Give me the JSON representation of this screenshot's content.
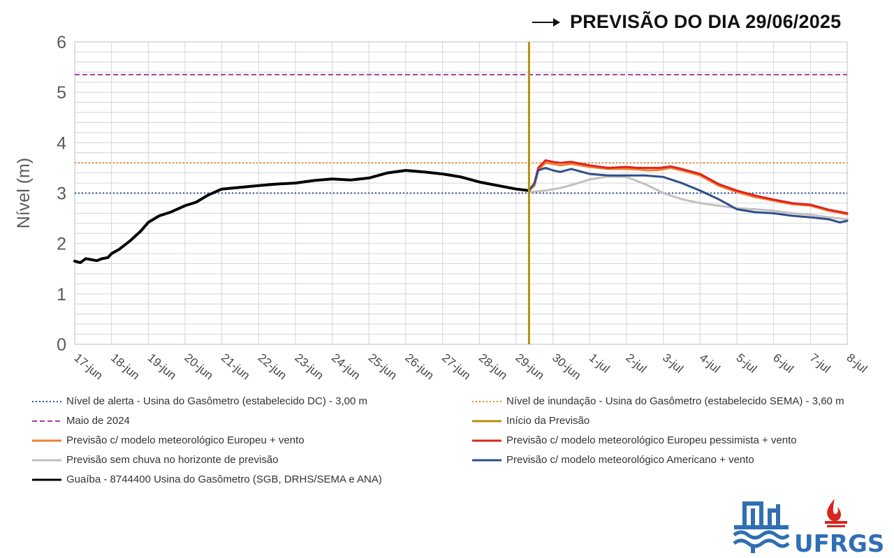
{
  "chart_data": {
    "type": "line",
    "title": "PREVISÃO DO DIA 29/06/2025",
    "ylabel": "Nível (m)",
    "xlabel": "",
    "ylim": [
      0,
      6
    ],
    "yticks": [
      "0",
      "1",
      "2",
      "3",
      "4",
      "5",
      "6"
    ],
    "xlim": [
      0,
      21
    ],
    "xticks": [
      "17-jun",
      "18-jun",
      "19-jun",
      "20-jun",
      "21-jun",
      "22-jun",
      "23-jun",
      "24-jun",
      "25-jun",
      "26-jun",
      "27-jun",
      "28-jun",
      "29-jun",
      "30-jun",
      "1-jul",
      "2-jul",
      "3-jul",
      "4-jul",
      "5-jul",
      "6-jul",
      "7-jul",
      "8-jul"
    ],
    "grid": true,
    "legend_position": "bottom",
    "reference_lines": [
      {
        "name": "Nível de alerta - Usina do Gasômetro (estabelecido DC) - 3,00 m",
        "value": 3.0,
        "color": "#2f4f9f",
        "style": "dotted"
      },
      {
        "name": "Nível de inundação - Usina do Gasômetro (estabelecido SEMA) - 3,60 m",
        "value": 3.6,
        "color": "#e08a2e",
        "style": "dotted"
      },
      {
        "name": "Maio de 2024",
        "value": 5.35,
        "color": "#a03ca0",
        "style": "dashed"
      }
    ],
    "vertical_line": {
      "name": "Início da Previsão",
      "x": 12.35,
      "color": "#b8900a"
    },
    "series": [
      {
        "name": "Previsão c/ modelo meteorológico Europeu + vento",
        "color": "#ee8233",
        "width": 3,
        "x": [
          12.35,
          12.5,
          12.6,
          12.8,
          13.0,
          13.2,
          13.5,
          14.0,
          14.5,
          15.0,
          15.3,
          15.6,
          15.9,
          16.2,
          16.5,
          17.0,
          17.5,
          18.0,
          18.5,
          19.0,
          19.5,
          20.0,
          20.5,
          21.0
        ],
        "y": [
          3.05,
          3.15,
          3.45,
          3.6,
          3.58,
          3.55,
          3.58,
          3.52,
          3.48,
          3.48,
          3.47,
          3.45,
          3.46,
          3.5,
          3.45,
          3.35,
          3.15,
          3.02,
          2.92,
          2.85,
          2.78,
          2.75,
          2.65,
          2.58
        ]
      },
      {
        "name": "Previsão c/ modelo meteorológico Europeu pessimista + vento",
        "color": "#e0231c",
        "width": 3,
        "x": [
          12.35,
          12.5,
          12.6,
          12.8,
          13.0,
          13.2,
          13.5,
          14.0,
          14.5,
          15.0,
          15.3,
          15.6,
          15.9,
          16.2,
          16.5,
          17.0,
          17.5,
          18.0,
          18.5,
          19.0,
          19.5,
          20.0,
          20.5,
          21.0
        ],
        "y": [
          3.05,
          3.2,
          3.5,
          3.65,
          3.62,
          3.6,
          3.62,
          3.55,
          3.5,
          3.52,
          3.5,
          3.5,
          3.5,
          3.53,
          3.48,
          3.38,
          3.18,
          3.05,
          2.95,
          2.87,
          2.8,
          2.77,
          2.67,
          2.6
        ]
      },
      {
        "name": "Previsão sem chuva no horizonte de previsão",
        "color": "#c0c0c0",
        "width": 3,
        "x": [
          12.35,
          12.8,
          13.2,
          13.6,
          14.0,
          14.5,
          15.0,
          15.5,
          16.0,
          16.5,
          17.0,
          17.5,
          18.0,
          18.5,
          19.0,
          19.5,
          20.0,
          20.5,
          21.0
        ],
        "y": [
          3.02,
          3.05,
          3.1,
          3.18,
          3.27,
          3.33,
          3.32,
          3.18,
          3.0,
          2.88,
          2.8,
          2.75,
          2.7,
          2.68,
          2.65,
          2.6,
          2.57,
          2.52,
          2.48
        ]
      },
      {
        "name": "Previsão c/ modelo meteorológico Americano + vento",
        "color": "#2e4f8a",
        "width": 3,
        "x": [
          12.35,
          12.5,
          12.6,
          12.8,
          13.0,
          13.2,
          13.5,
          14.0,
          14.5,
          15.0,
          15.5,
          16.0,
          16.5,
          17.0,
          17.5,
          18.0,
          18.5,
          19.0,
          19.5,
          20.0,
          20.5,
          20.8,
          21.0
        ],
        "y": [
          3.05,
          3.2,
          3.45,
          3.5,
          3.45,
          3.42,
          3.48,
          3.38,
          3.35,
          3.35,
          3.35,
          3.32,
          3.2,
          3.05,
          2.88,
          2.68,
          2.62,
          2.6,
          2.55,
          2.52,
          2.48,
          2.42,
          2.45
        ]
      },
      {
        "name": "Guaíba - 8744400 Usina do Gasômetro (SGB, DRHS/SEMA e ANA)",
        "color": "#000000",
        "width": 4,
        "x": [
          0.0,
          0.15,
          0.3,
          0.45,
          0.6,
          0.75,
          0.9,
          1.0,
          1.2,
          1.5,
          1.8,
          2.0,
          2.3,
          2.6,
          3.0,
          3.3,
          3.6,
          3.9,
          4.0,
          4.3,
          4.6,
          5.0,
          5.5,
          6.0,
          6.5,
          7.0,
          7.5,
          8.0,
          8.5,
          9.0,
          9.5,
          10.0,
          10.5,
          11.0,
          11.5,
          12.0,
          12.35
        ],
        "y": [
          1.65,
          1.62,
          1.7,
          1.68,
          1.66,
          1.7,
          1.72,
          1.8,
          1.88,
          2.05,
          2.25,
          2.42,
          2.55,
          2.62,
          2.75,
          2.82,
          2.95,
          3.05,
          3.08,
          3.1,
          3.12,
          3.15,
          3.18,
          3.2,
          3.25,
          3.28,
          3.26,
          3.3,
          3.4,
          3.45,
          3.42,
          3.38,
          3.32,
          3.22,
          3.15,
          3.08,
          3.05
        ]
      }
    ]
  },
  "colors": {
    "grid": "#d4d4d4",
    "axis_text": "#5a5a5a",
    "logo_blue": "#2f6fb3",
    "logo_red": "#d8251d"
  },
  "logo": {
    "ufrgs": "UFRGS"
  }
}
